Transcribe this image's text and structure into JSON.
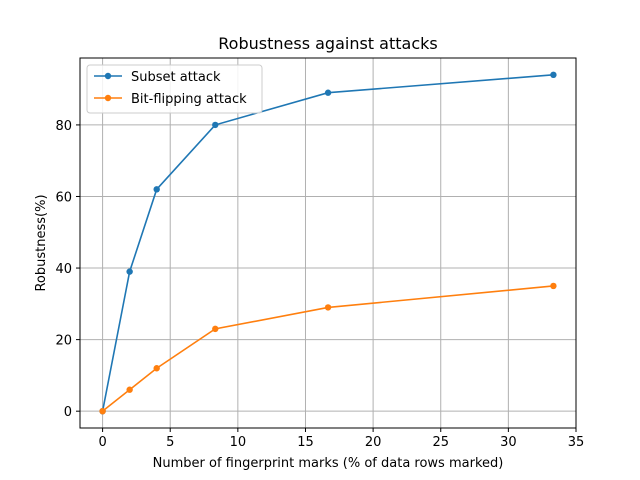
{
  "chart_data": {
    "type": "line",
    "title": "Robustness against attacks",
    "xlabel": "Number of fingerprint marks (% of data rows marked)",
    "ylabel": "Robustness(%)",
    "xlim": [
      -1.67,
      35
    ],
    "ylim": [
      -4.7,
      98.7
    ],
    "xticks": [
      0,
      5,
      10,
      15,
      20,
      25,
      30,
      35
    ],
    "yticks": [
      0,
      20,
      40,
      60,
      80
    ],
    "grid": true,
    "legend_position": "top-left",
    "series": [
      {
        "name": "Subset attack",
        "color": "#1f77b4",
        "x": [
          0,
          2,
          4,
          8.33,
          16.67,
          33.33
        ],
        "y": [
          0,
          39,
          62,
          80,
          89,
          94
        ]
      },
      {
        "name": "Bit-flipping attack",
        "color": "#ff7f0e",
        "x": [
          0,
          2,
          4,
          8.33,
          16.67,
          33.33
        ],
        "y": [
          0,
          6,
          12,
          23,
          29,
          35
        ]
      }
    ]
  }
}
